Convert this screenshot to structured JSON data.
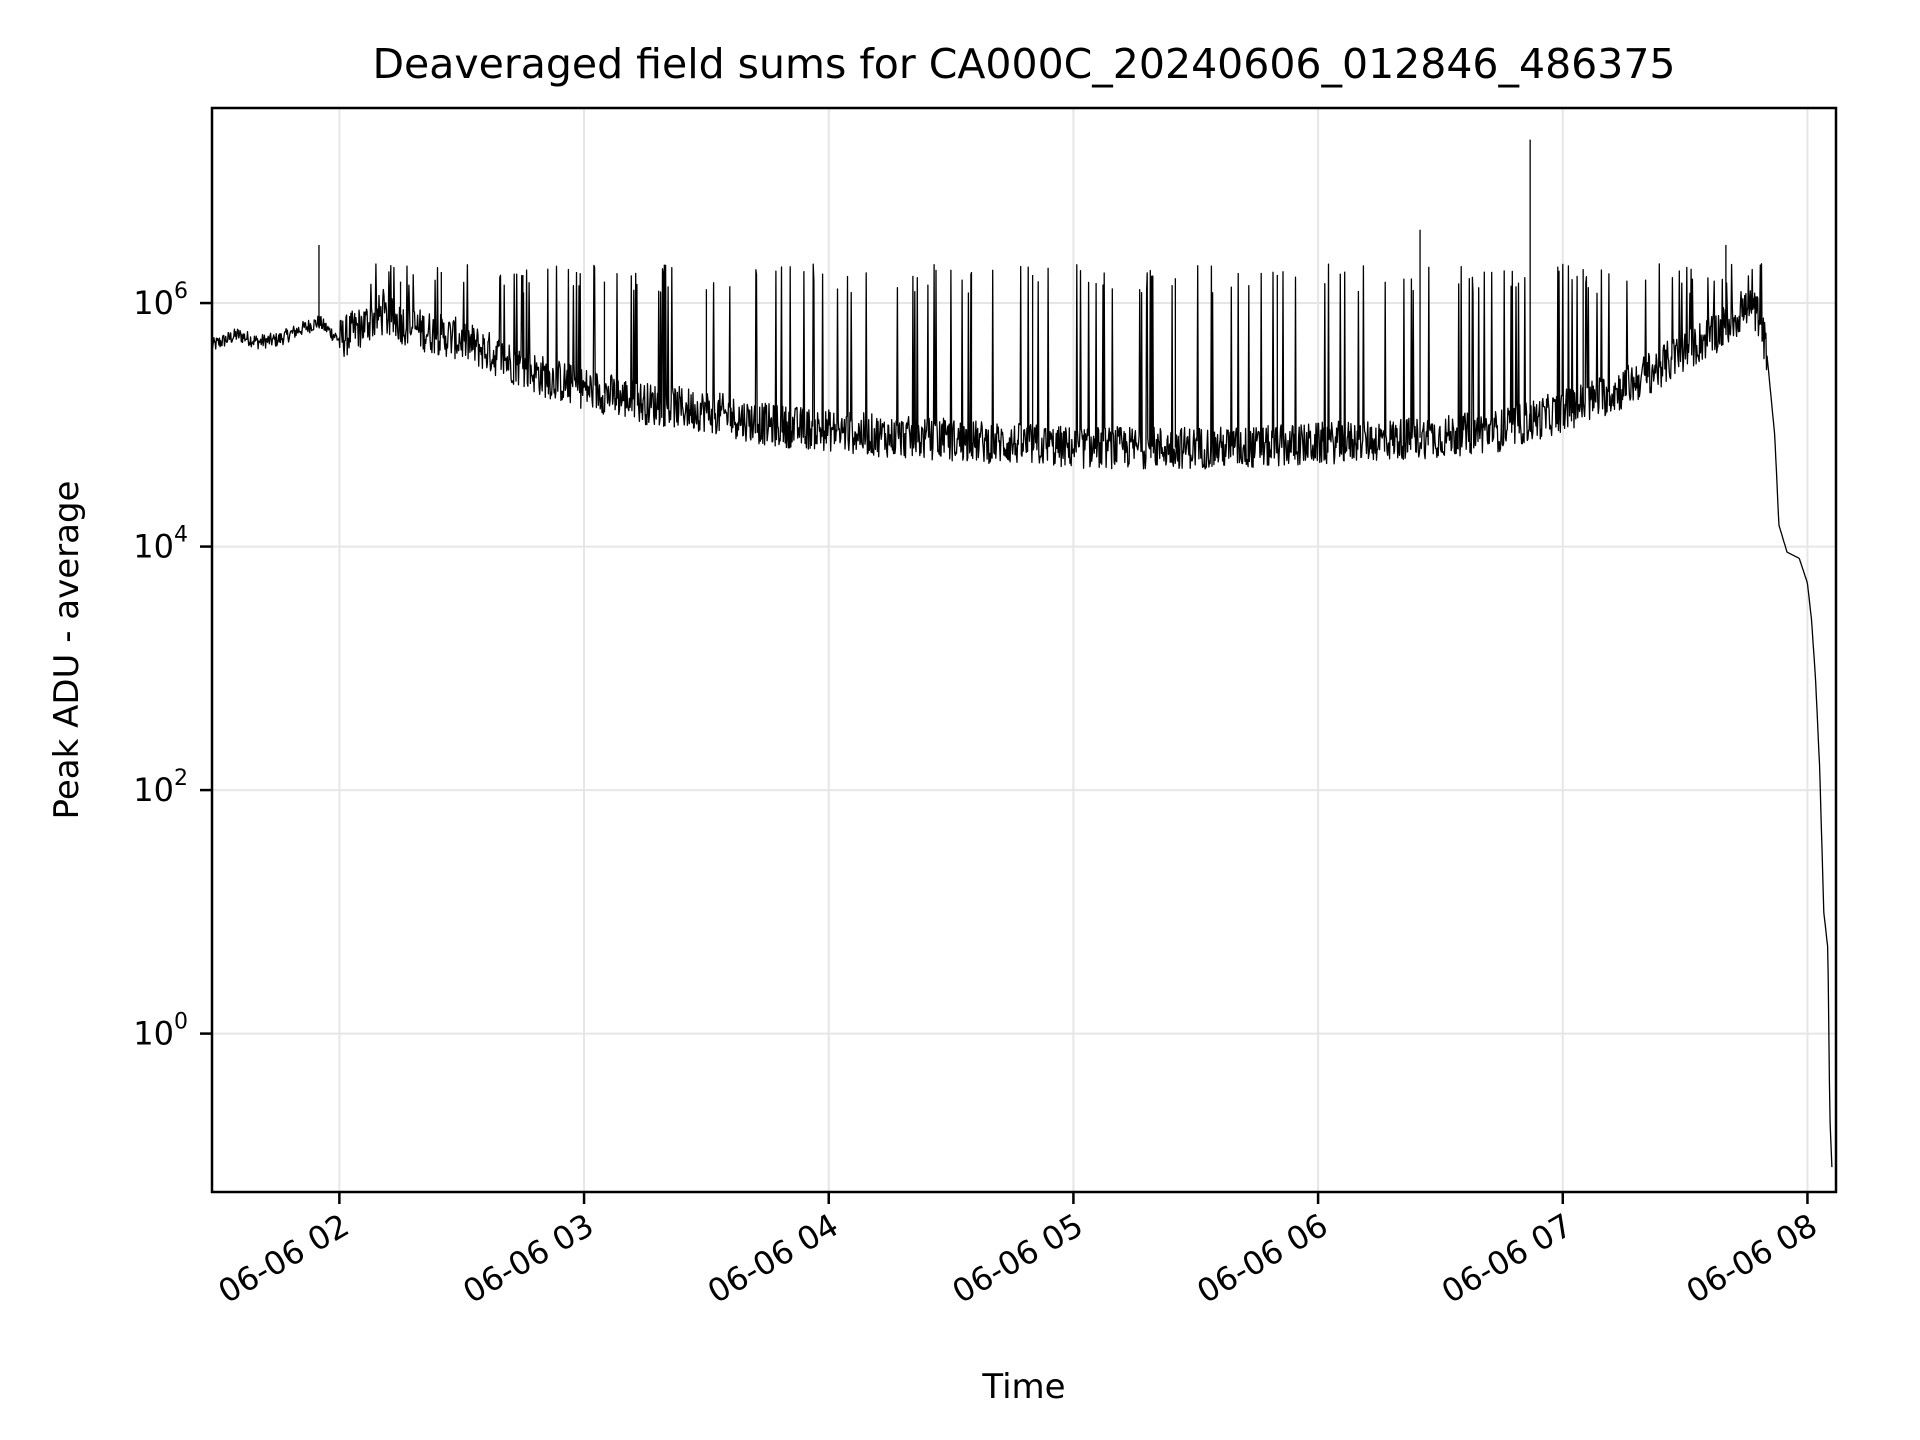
{
  "chart_data": {
    "type": "line",
    "title": "Deaveraged field sums for CA000C_20240606_012846_486375",
    "xlabel": "Time",
    "ylabel": "Peak ADU - average",
    "yscale": "log",
    "grid": true,
    "xlim": [
      "2024-06-06 01:28:46",
      "2024-06-06 08:07:00"
    ],
    "ylim": [
      0.05,
      40000000
    ],
    "x_ticks": [
      "06-06 02",
      "06-06 03",
      "06-06 04",
      "06-06 05",
      "06-06 06",
      "06-06 07",
      "06-06 08"
    ],
    "y_ticks": [
      {
        "base": "10",
        "exp": "0"
      },
      {
        "base": "10",
        "exp": "2"
      },
      {
        "base": "10",
        "exp": "4"
      },
      {
        "base": "10",
        "exp": "6"
      }
    ],
    "series": [
      {
        "color": "#000000",
        "points": [
          [
            "2024-06-06 01:29",
            450000
          ],
          [
            "2024-06-06 01:35",
            550000
          ],
          [
            "2024-06-06 01:40",
            480000
          ],
          [
            "2024-06-06 01:45",
            500000
          ],
          [
            "2024-06-06 01:50",
            600000
          ],
          [
            "2024-06-06 01:55",
            700000
          ],
          [
            "2024-06-06 02:00",
            500000
          ],
          [
            "2024-06-06 02:10",
            800000
          ],
          [
            "2024-06-06 02:20",
            600000
          ],
          [
            "2024-06-06 02:30",
            500000
          ],
          [
            "2024-06-06 02:40",
            350000
          ],
          [
            "2024-06-06 02:50",
            250000
          ],
          [
            "2024-06-06 03:00",
            200000
          ],
          [
            "2024-06-06 03:15",
            150000
          ],
          [
            "2024-06-06 03:30",
            130000
          ],
          [
            "2024-06-06 03:45",
            100000
          ],
          [
            "2024-06-06 04:00",
            90000
          ],
          [
            "2024-06-06 04:15",
            80000
          ],
          [
            "2024-06-06 04:30",
            75000
          ],
          [
            "2024-06-06 04:45",
            70000
          ],
          [
            "2024-06-06 05:00",
            65000
          ],
          [
            "2024-06-06 05:15",
            65000
          ],
          [
            "2024-06-06 05:30",
            65000
          ],
          [
            "2024-06-06 05:45",
            65000
          ],
          [
            "2024-06-06 06:00",
            70000
          ],
          [
            "2024-06-06 06:15",
            75000
          ],
          [
            "2024-06-06 06:30",
            80000
          ],
          [
            "2024-06-06 06:45",
            90000
          ],
          [
            "2024-06-06 07:00",
            130000
          ],
          [
            "2024-06-06 07:15",
            200000
          ],
          [
            "2024-06-06 07:30",
            400000
          ],
          [
            "2024-06-06 07:40",
            650000
          ],
          [
            "2024-06-06 07:45",
            900000
          ],
          [
            "2024-06-06 07:48",
            800000
          ],
          [
            "2024-06-06 07:50",
            400000
          ],
          [
            "2024-06-06 07:52",
            80000
          ],
          [
            "2024-06-06 07:53",
            15000
          ],
          [
            "2024-06-06 07:55",
            9000
          ],
          [
            "2024-06-06 07:58",
            8000
          ],
          [
            "2024-06-06 08:00",
            5000
          ],
          [
            "2024-06-06 08:01",
            2500
          ],
          [
            "2024-06-06 08:02",
            800
          ],
          [
            "2024-06-06 08:03",
            150
          ],
          [
            "2024-06-06 08:04",
            10
          ],
          [
            "2024-06-06 08:05",
            5
          ],
          [
            "2024-06-06 08:05:30",
            0.2
          ],
          [
            "2024-06-06 08:06",
            0.08
          ]
        ],
        "spikes": [
          [
            "2024-06-06 01:55",
            3000000
          ],
          [
            "2024-06-06 02:15",
            1500000
          ],
          [
            "2024-06-06 02:25",
            1800000
          ],
          [
            "2024-06-06 02:45",
            1700000
          ],
          [
            "2024-06-06 03:05",
            1500000
          ],
          [
            "2024-06-06 03:30",
            1300000
          ],
          [
            "2024-06-06 04:35",
            1800000
          ],
          [
            "2024-06-06 04:50",
            1700000
          ],
          [
            "2024-06-06 05:25",
            1600000
          ],
          [
            "2024-06-06 05:50",
            1700000
          ],
          [
            "2024-06-06 06:25",
            4000000
          ],
          [
            "2024-06-06 06:52",
            22000000
          ],
          [
            "2024-06-06 07:05",
            1900000
          ],
          [
            "2024-06-06 07:40",
            3000000
          ]
        ]
      }
    ]
  }
}
